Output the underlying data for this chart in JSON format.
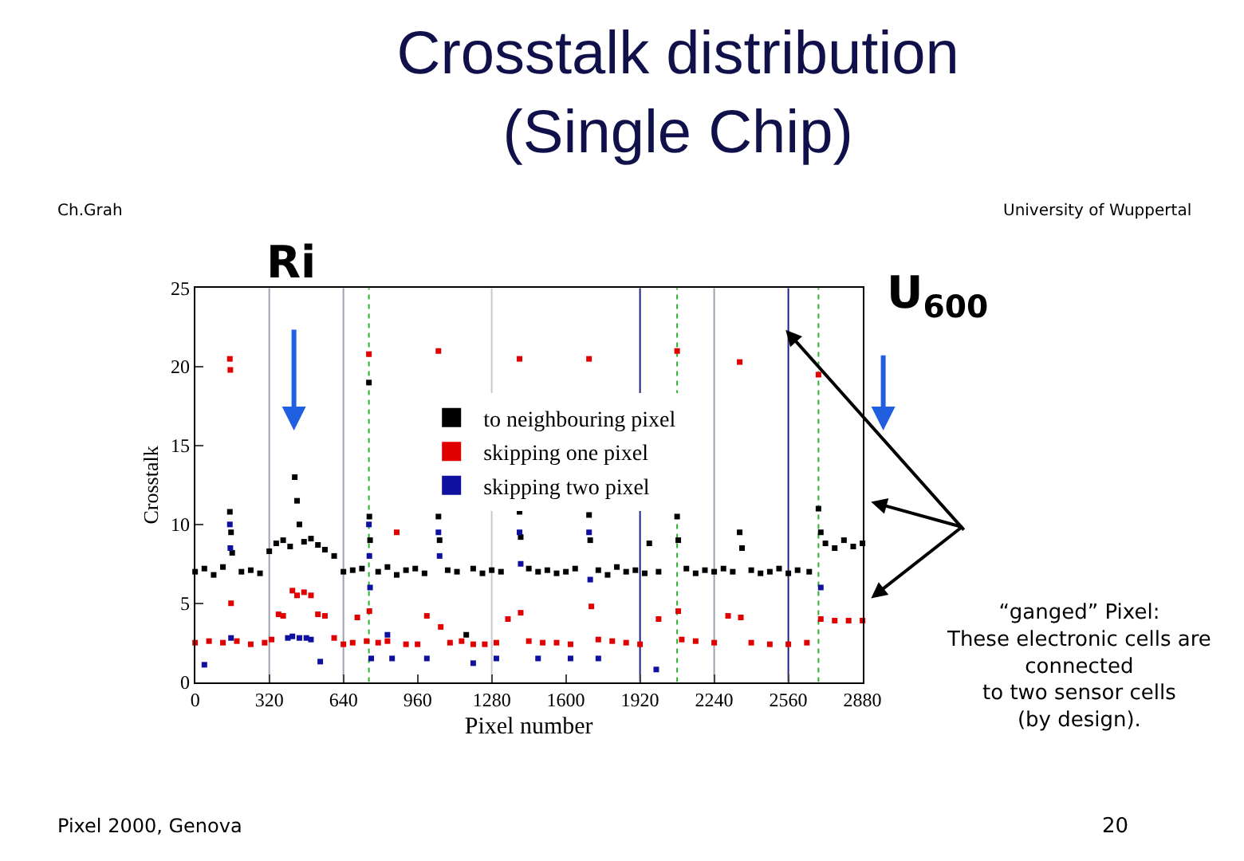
{
  "chart_data": {
    "type": "scatter",
    "title": "Crosstalk distribution\n(Single Chip)",
    "xlabel": "Pixel number",
    "ylabel": "Crosstalk",
    "xlim": [
      0,
      2880
    ],
    "xticks": [
      0,
      320,
      640,
      960,
      1280,
      1600,
      1920,
      2240,
      2560,
      2880
    ],
    "ylim": [
      0,
      25
    ],
    "yticks": [
      0,
      5,
      10,
      15,
      20,
      25
    ],
    "grid": false,
    "legend": "top",
    "marker": "square",
    "series": [
      {
        "name": "to neighbouring pixel",
        "color": "#000000",
        "x": [
          0,
          40,
          80,
          120,
          150,
          155,
          160,
          200,
          240,
          280,
          320,
          350,
          380,
          410,
          430,
          440,
          450,
          470,
          500,
          530,
          560,
          600,
          640,
          680,
          720,
          750,
          752,
          755,
          790,
          830,
          870,
          910,
          950,
          990,
          1050,
          1055,
          1090,
          1130,
          1170,
          1200,
          1240,
          1280,
          1320,
          1400,
          1405,
          1440,
          1480,
          1520,
          1560,
          1600,
          1640,
          1700,
          1705,
          1740,
          1780,
          1820,
          1860,
          1900,
          1940,
          1960,
          2000,
          2080,
          2085,
          2120,
          2160,
          2200,
          2240,
          2280,
          2320,
          2350,
          2360,
          2400,
          2440,
          2480,
          2520,
          2560,
          2600,
          2650,
          2690,
          2700,
          2720,
          2760,
          2800,
          2840,
          2880
        ],
        "values": [
          7.0,
          7.2,
          6.8,
          7.3,
          10.8,
          9.5,
          8.2,
          7.0,
          7.1,
          6.9,
          8.3,
          8.8,
          9.0,
          8.6,
          13.0,
          11.5,
          10.0,
          8.9,
          9.1,
          8.7,
          8.4,
          8.0,
          7.0,
          7.1,
          7.2,
          19.0,
          10.5,
          9.0,
          7.0,
          7.3,
          6.8,
          7.1,
          7.2,
          6.9,
          10.5,
          9.0,
          7.1,
          7.0,
          3.0,
          7.2,
          6.9,
          7.1,
          7.0,
          10.8,
          9.2,
          7.2,
          7.0,
          7.1,
          6.9,
          7.0,
          7.2,
          10.6,
          9.0,
          7.1,
          6.8,
          7.3,
          7.0,
          7.1,
          6.9,
          8.8,
          7.0,
          10.5,
          9.0,
          7.2,
          6.9,
          7.1,
          7.0,
          7.2,
          7.0,
          9.5,
          8.5,
          7.1,
          6.9,
          7.0,
          7.2,
          6.9,
          7.1,
          7.0,
          11.0,
          9.5,
          8.8,
          8.5,
          9.0,
          8.6,
          8.8
        ]
      },
      {
        "name": "skipping one pixel",
        "color": "#e00000",
        "x": [
          0,
          60,
          120,
          150,
          152,
          155,
          180,
          240,
          300,
          330,
          360,
          380,
          420,
          440,
          470,
          500,
          530,
          560,
          600,
          640,
          680,
          700,
          740,
          750,
          752,
          790,
          830,
          870,
          910,
          960,
          1000,
          1050,
          1060,
          1100,
          1150,
          1200,
          1250,
          1300,
          1350,
          1400,
          1405,
          1440,
          1500,
          1560,
          1620,
          1700,
          1710,
          1740,
          1800,
          1860,
          1920,
          2000,
          2080,
          2085,
          2100,
          2160,
          2240,
          2300,
          2350,
          2355,
          2400,
          2480,
          2560,
          2640,
          2690,
          2700,
          2760,
          2820,
          2880
        ],
        "values": [
          2.5,
          2.6,
          2.5,
          20.5,
          19.8,
          5.0,
          2.6,
          2.4,
          2.5,
          2.7,
          4.3,
          4.2,
          5.8,
          5.5,
          5.7,
          5.5,
          4.3,
          4.2,
          2.8,
          2.4,
          2.5,
          4.1,
          2.6,
          20.8,
          4.5,
          2.5,
          2.6,
          9.5,
          2.4,
          2.4,
          4.2,
          21.0,
          3.5,
          2.5,
          2.6,
          2.4,
          2.4,
          2.5,
          4.0,
          20.5,
          4.4,
          2.6,
          2.5,
          2.5,
          2.4,
          20.5,
          4.8,
          2.7,
          2.6,
          2.5,
          2.4,
          4.0,
          21.0,
          4.5,
          2.7,
          2.6,
          2.5,
          4.2,
          20.3,
          4.1,
          2.5,
          2.4,
          2.4,
          2.5,
          19.5,
          4.0,
          3.9,
          3.9,
          3.9
        ]
      },
      {
        "name": "skipping two pixel",
        "color": "#1010a0",
        "x": [
          40,
          150,
          152,
          155,
          400,
          420,
          450,
          480,
          500,
          540,
          750,
          752,
          755,
          760,
          830,
          850,
          1000,
          1050,
          1055,
          1200,
          1300,
          1400,
          1405,
          1480,
          1620,
          1700,
          1705,
          1740,
          1990,
          2700
        ],
        "values": [
          1.1,
          10.0,
          8.5,
          2.8,
          2.8,
          2.9,
          2.8,
          2.8,
          2.7,
          1.3,
          10.0,
          8.0,
          6.0,
          1.5,
          3.0,
          1.5,
          1.5,
          9.5,
          8.0,
          1.2,
          1.5,
          9.5,
          7.5,
          1.5,
          1.5,
          9.5,
          6.5,
          1.5,
          0.8,
          6.0
        ]
      }
    ],
    "ref_lines": [
      {
        "axis": "x",
        "value": 320,
        "color": "#a0a0b0",
        "line_style": "solid"
      },
      {
        "axis": "x",
        "value": 640,
        "color": "#a0a0b0",
        "line_style": "solid"
      },
      {
        "axis": "x",
        "value": 750,
        "color": "#30b030",
        "line_style": "dotted"
      },
      {
        "axis": "x",
        "value": 1280,
        "color": "#c8c8d0",
        "line_style": "solid"
      },
      {
        "axis": "x",
        "value": 1920,
        "color": "#202080",
        "line_style": "solid"
      },
      {
        "axis": "x",
        "value": 2080,
        "color": "#30b030",
        "line_style": "dotted"
      },
      {
        "axis": "x",
        "value": 2240,
        "color": "#a0a0b0",
        "line_style": "solid"
      },
      {
        "axis": "x",
        "value": 2560,
        "color": "#202080",
        "line_style": "solid"
      },
      {
        "axis": "x",
        "value": 2690,
        "color": "#30b030",
        "line_style": "dotted"
      }
    ],
    "annotations": [
      "Ch.Grah",
      "University of Wuppertal",
      "Ri",
      "U$_{600}$",
      "“ganged” Pixel:\nThese electronic cells are\nconnected\nto two sensor cells\n(by design).",
      "Pixel 2000, Genova",
      "20"
    ]
  }
}
